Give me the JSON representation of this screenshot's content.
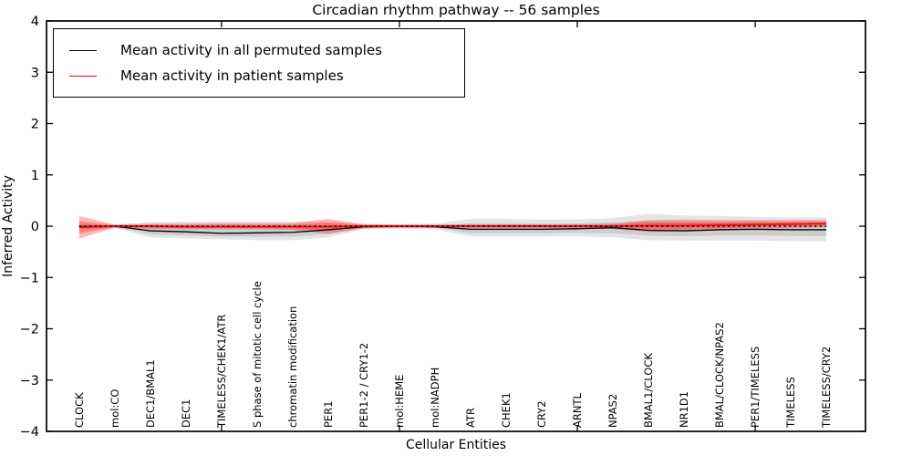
{
  "title": "Circadian rhythm pathway -- 56 samples",
  "legend": {
    "position": "upper left",
    "items": [
      {
        "label": "Mean activity in all permuted samples",
        "color": "#000000"
      },
      {
        "label": "Mean activity in patient samples",
        "color": "#ff0000"
      }
    ]
  },
  "axes": {
    "xlabel": "Cellular Entities",
    "ylabel": "Inferred Activity",
    "y_ticks": [
      {
        "value": 4,
        "label": "4"
      },
      {
        "value": 3,
        "label": "3"
      },
      {
        "value": 2,
        "label": "2"
      },
      {
        "value": 1,
        "label": "1"
      },
      {
        "value": 0,
        "label": "0"
      },
      {
        "value": -1,
        "label": "−1"
      },
      {
        "value": -2,
        "label": "−2"
      },
      {
        "value": -3,
        "label": "−3"
      },
      {
        "value": -4,
        "label": "−4"
      }
    ],
    "x_major_tick_positions": [
      5,
      10,
      15,
      20
    ]
  },
  "chart_data": {
    "type": "line",
    "title": "Circadian rhythm pathway -- 56 samples",
    "xlabel": "Cellular Entities",
    "ylabel": "Inferred Activity",
    "ylim": [
      -4,
      4
    ],
    "xlim": [
      0.08,
      23.1
    ],
    "grid": false,
    "legend_position": "upper left",
    "categories": [
      "CLOCK",
      "mol:CO",
      "DEC1/BMAL1",
      "DEC1",
      "TIMELESS/CHEK1/ATR",
      "S phase of mitotic cell cycle",
      "chromatin modification",
      "PER1",
      "PER1-2 / CRY1-2",
      "mol:HEME",
      "mol:NADPH",
      "ATR",
      "CHEK1",
      "CRY2",
      "ARNTL",
      "NPAS2",
      "BMAL1/CLOCK",
      "NR1D1",
      "BMAL/CLOCK/NPAS2",
      "PER1/TIMELESS",
      "TIMELESS",
      "TIMELESS/CRY2"
    ],
    "x": [
      1,
      2,
      3,
      4,
      5,
      6,
      7,
      8,
      9,
      10,
      11,
      12,
      13,
      14,
      15,
      16,
      17,
      18,
      19,
      20,
      21,
      22
    ],
    "series": [
      {
        "name": "Mean activity in all permuted samples",
        "color": "#000000",
        "band_color": "#000000",
        "band_opacity": 0.1,
        "values": [
          -0.01,
          0.0,
          -0.09,
          -0.11,
          -0.14,
          -0.13,
          -0.12,
          -0.07,
          -0.01,
          0.0,
          -0.01,
          -0.06,
          -0.06,
          -0.06,
          -0.05,
          -0.03,
          -0.08,
          -0.09,
          -0.07,
          -0.06,
          -0.07,
          -0.07
        ],
        "band_lo": [
          -0.07,
          -0.04,
          -0.22,
          -0.24,
          -0.26,
          -0.27,
          -0.27,
          -0.22,
          -0.06,
          -0.05,
          -0.06,
          -0.2,
          -0.2,
          -0.2,
          -0.2,
          -0.22,
          -0.27,
          -0.28,
          -0.28,
          -0.28,
          -0.29,
          -0.3
        ],
        "band_hi": [
          0.05,
          0.03,
          0.08,
          0.09,
          0.09,
          0.09,
          0.09,
          0.08,
          0.04,
          0.04,
          0.05,
          0.14,
          0.14,
          0.13,
          0.13,
          0.16,
          0.24,
          0.21,
          0.2,
          0.18,
          0.17,
          0.17
        ]
      },
      {
        "name": "Mean activity in patient samples",
        "color": "#ff0000",
        "band_color": "#ff0000",
        "band_opacity": 0.28,
        "values": [
          -0.02,
          0.0,
          0.0,
          -0.01,
          -0.01,
          -0.01,
          -0.01,
          -0.01,
          0.0,
          0.0,
          0.0,
          0.0,
          0.0,
          0.0,
          0.0,
          0.0,
          0.01,
          0.01,
          0.02,
          0.03,
          0.04,
          0.05
        ],
        "band_lo": [
          -0.24,
          -0.03,
          -0.05,
          -0.06,
          -0.06,
          -0.06,
          -0.07,
          -0.15,
          -0.04,
          -0.03,
          -0.03,
          -0.04,
          -0.04,
          -0.04,
          -0.05,
          -0.05,
          -0.11,
          -0.1,
          -0.08,
          -0.06,
          -0.04,
          -0.02
        ],
        "band_hi": [
          0.2,
          0.03,
          0.05,
          0.05,
          0.06,
          0.06,
          0.06,
          0.14,
          0.04,
          0.03,
          0.03,
          0.04,
          0.04,
          0.04,
          0.04,
          0.05,
          0.12,
          0.13,
          0.12,
          0.12,
          0.12,
          0.12
        ]
      }
    ],
    "zero_line": {
      "value": 0,
      "style": "dotted",
      "color": "#000000"
    }
  }
}
